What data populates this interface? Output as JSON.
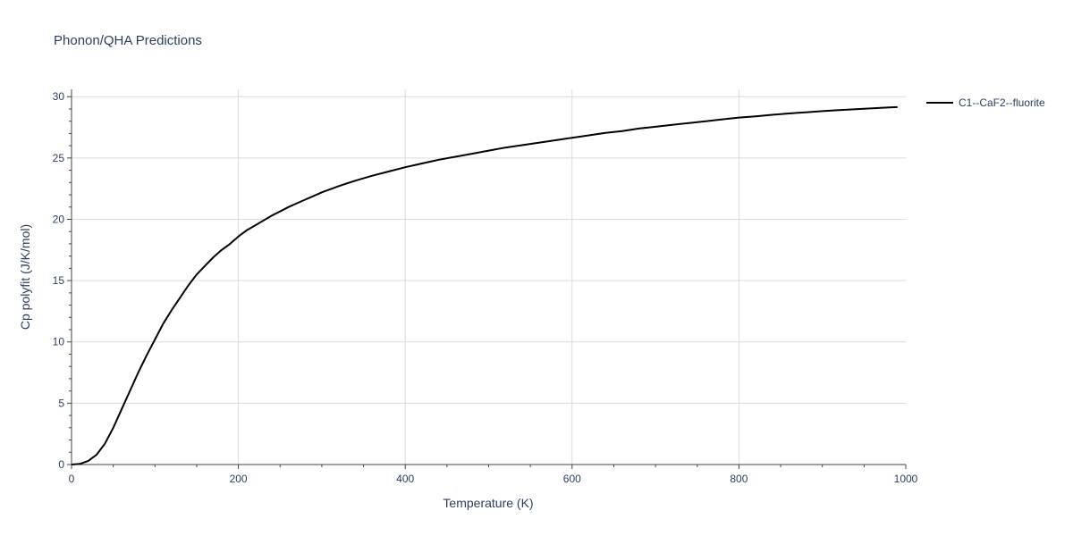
{
  "chart_data": {
    "type": "line",
    "title": "Phonon/QHA Predictions",
    "xlabel": "Temperature (K)",
    "ylabel": "Cp polyfit (J/K/mol)",
    "xlim": [
      0,
      1000
    ],
    "ylim": [
      0,
      30.6
    ],
    "x_ticks": [
      0,
      200,
      400,
      600,
      800,
      1000
    ],
    "y_ticks": [
      0,
      5,
      10,
      15,
      20,
      25,
      30
    ],
    "grid": true,
    "legend_position": "top-right",
    "series": [
      {
        "name": "C1--CaF2--fluorite",
        "color": "#000000",
        "x": [
          0,
          10,
          20,
          30,
          40,
          50,
          60,
          70,
          80,
          90,
          100,
          110,
          120,
          130,
          140,
          150,
          160,
          170,
          180,
          190,
          200,
          210,
          220,
          230,
          240,
          250,
          260,
          270,
          280,
          290,
          300,
          320,
          340,
          360,
          380,
          400,
          420,
          440,
          460,
          480,
          500,
          520,
          540,
          560,
          580,
          600,
          620,
          640,
          660,
          680,
          700,
          720,
          740,
          760,
          780,
          800,
          820,
          840,
          860,
          880,
          900,
          920,
          940,
          960,
          980,
          990
        ],
        "y": [
          0,
          0.05,
          0.3,
          0.8,
          1.7,
          3.0,
          4.5,
          6.0,
          7.5,
          8.9,
          10.2,
          11.5,
          12.6,
          13.6,
          14.6,
          15.5,
          16.2,
          16.9,
          17.5,
          18.0,
          18.6,
          19.1,
          19.5,
          19.9,
          20.3,
          20.65,
          21.0,
          21.3,
          21.6,
          21.9,
          22.2,
          22.7,
          23.15,
          23.55,
          23.9,
          24.25,
          24.55,
          24.85,
          25.1,
          25.35,
          25.6,
          25.85,
          26.05,
          26.25,
          26.45,
          26.65,
          26.85,
          27.05,
          27.2,
          27.4,
          27.55,
          27.7,
          27.85,
          28.0,
          28.15,
          28.3,
          28.4,
          28.52,
          28.63,
          28.73,
          28.82,
          28.9,
          28.98,
          29.05,
          29.12,
          29.15
        ]
      }
    ]
  }
}
